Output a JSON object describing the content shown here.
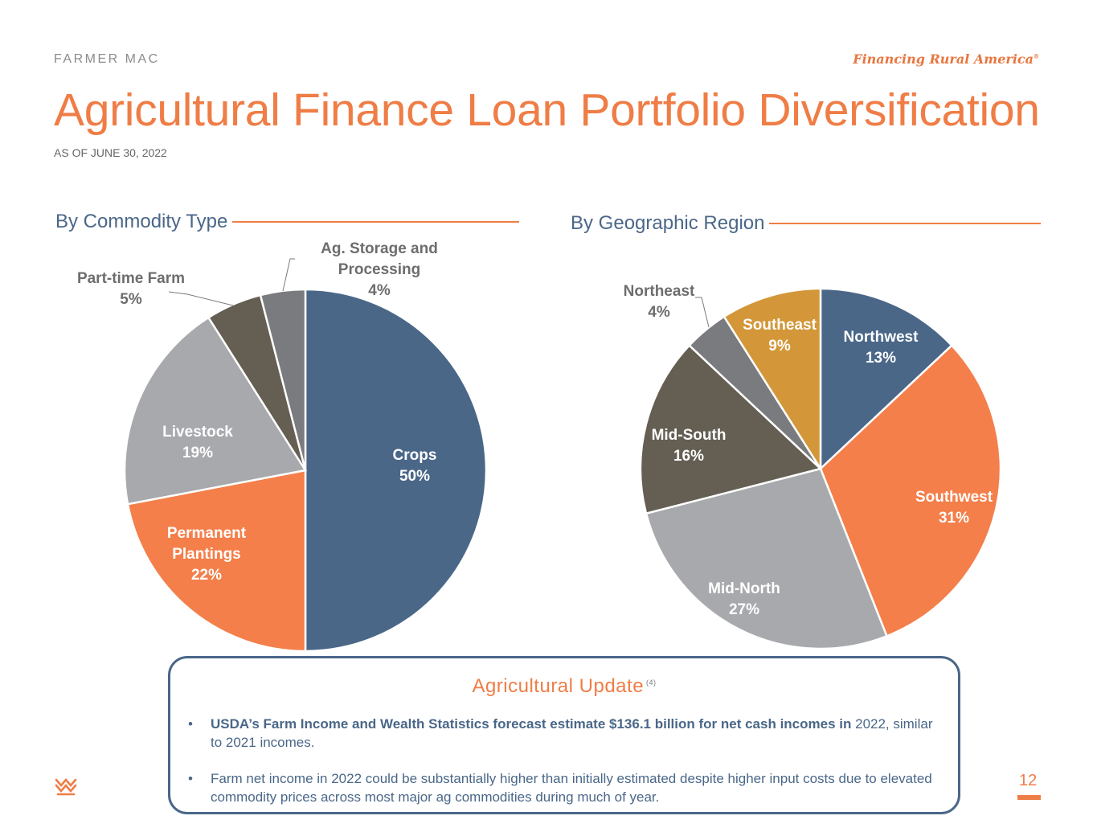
{
  "header": {
    "brand": "FARMER MAC",
    "tagline": "Financing Rural America",
    "tagline_mark": "®",
    "title": "Agricultural Finance Loan Portfolio Diversification",
    "subtitle": "AS OF JUNE 30, 2022"
  },
  "chart_data": [
    {
      "type": "pie",
      "title": "By Commodity Type",
      "slices": [
        {
          "label": [
            "Crops",
            "50%"
          ],
          "value": 50,
          "color": "#4a6788"
        },
        {
          "label": [
            "Permanent",
            "Plantings",
            "22%"
          ],
          "value": 22,
          "color": "#f47f4a"
        },
        {
          "label": [
            "Livestock",
            "19%"
          ],
          "value": 19,
          "color": "#a8a9ad"
        },
        {
          "label": [
            "Part-time Farm",
            "5%"
          ],
          "value": 5,
          "color": "#645f52"
        },
        {
          "label": [
            "Ag. Storage and",
            "Processing",
            "4%"
          ],
          "value": 4,
          "color": "#7a7b7e"
        }
      ]
    },
    {
      "type": "pie",
      "title": "By Geographic Region",
      "slices": [
        {
          "label": [
            "Northwest",
            "13%"
          ],
          "value": 13,
          "color": "#4a6788"
        },
        {
          "label": [
            "Southwest",
            "31%"
          ],
          "value": 31,
          "color": "#f47f4a"
        },
        {
          "label": [
            "Mid-North",
            "27%"
          ],
          "value": 27,
          "color": "#a8a9ad"
        },
        {
          "label": [
            "Mid-South",
            "16%"
          ],
          "value": 16,
          "color": "#645f52"
        },
        {
          "label": [
            "Northeast",
            "4%"
          ],
          "value": 4,
          "color": "#7a7b7e"
        },
        {
          "label": [
            "Southeast",
            "9%"
          ],
          "value": 9,
          "color": "#d3973a"
        }
      ]
    }
  ],
  "update": {
    "title": "Agricultural Update",
    "footnote": "(4)",
    "bullet_symbol": "•",
    "bullet1_bold": "USDA’s Farm Income and Wealth Statistics forecast estimate $136.1 billion for net cash incomes in",
    "bullet1_rest": "2022, similar to 2021 incomes.",
    "bullet2": "Farm net income in 2022 could be substantially higher than initially estimated despite higher input costs due to elevated commodity prices across most major ag commodities during much of year."
  },
  "footer": {
    "page_number": "12",
    "logo_icon": "farmer-mac-wheat-icon"
  }
}
